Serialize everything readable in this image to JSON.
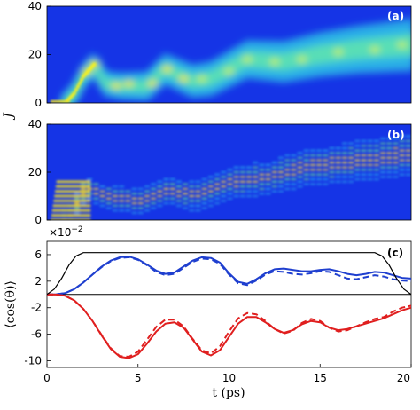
{
  "chart_data": [
    {
      "type": "heatmap",
      "panel_label": "(a)",
      "ylabel": "J",
      "ylim": [
        0,
        40
      ],
      "y_ticks": [
        "0",
        "20",
        "40"
      ],
      "xlim": [
        0,
        20
      ],
      "colormap": "jet",
      "description_ridge": [
        {
          "t": 1.0,
          "J": 0
        },
        {
          "t": 1.5,
          "J": 4
        },
        {
          "t": 2.0,
          "J": 11
        },
        {
          "t": 2.6,
          "J": 16
        },
        {
          "t": 3.2,
          "J": 8
        },
        {
          "t": 4.0,
          "J": 7
        },
        {
          "t": 5.5,
          "J": 7
        },
        {
          "t": 6.5,
          "J": 14
        },
        {
          "t": 8.0,
          "J": 9
        },
        {
          "t": 9.0,
          "J": 10
        },
        {
          "t": 11.0,
          "J": 18
        },
        {
          "t": 13.0,
          "J": 17
        },
        {
          "t": 15.0,
          "J": 20
        },
        {
          "t": 17.0,
          "J": 22
        },
        {
          "t": 20.0,
          "J": 24
        }
      ]
    },
    {
      "type": "heatmap",
      "panel_label": "(b)",
      "ylim": [
        0,
        40
      ],
      "y_ticks": [
        "0",
        "20",
        "40"
      ],
      "xlim": [
        0,
        20
      ],
      "colormap": "jet",
      "description_ridge": [
        {
          "t": 1.0,
          "J": 0
        },
        {
          "t": 2.0,
          "J": 14
        },
        {
          "t": 3.0,
          "J": 10
        },
        {
          "t": 5.0,
          "J": 8
        },
        {
          "t": 6.5,
          "J": 13
        },
        {
          "t": 8.0,
          "J": 10
        },
        {
          "t": 10.0,
          "J": 16
        },
        {
          "t": 12.0,
          "J": 18
        },
        {
          "t": 14.0,
          "J": 22
        },
        {
          "t": 16.0,
          "J": 24
        },
        {
          "t": 18.0,
          "J": 26
        },
        {
          "t": 20.0,
          "J": 28
        }
      ]
    },
    {
      "type": "line",
      "panel_label": "(c)",
      "ylabel": "⟨cos(θ)⟩",
      "xlabel": "t (ps)",
      "y_scale_label": "×10",
      "y_scale_exponent": "−2",
      "ylim": [
        -11,
        8
      ],
      "xlim": [
        0,
        20
      ],
      "x_ticks": [
        "0",
        "5",
        "10",
        "15",
        "20"
      ],
      "y_ticks": [
        "6",
        "2",
        "-2",
        "-6",
        "-10"
      ],
      "y_tick_values": [
        6,
        2,
        -2,
        -6,
        -10
      ],
      "series": [
        {
          "color": "#1f3fcf",
          "style": "solid",
          "x": [
            0,
            0.5,
            1,
            1.5,
            2,
            2.5,
            3,
            3.5,
            4,
            4.5,
            5,
            5.5,
            6,
            6.5,
            7,
            7.5,
            8,
            8.5,
            9,
            9.5,
            10,
            10.5,
            11,
            11.5,
            12,
            12.5,
            13,
            13.5,
            14,
            14.5,
            15,
            15.5,
            16,
            16.5,
            17,
            17.5,
            18,
            18.5,
            19,
            19.5,
            20
          ],
          "y": [
            0,
            0.02,
            0.2,
            0.8,
            1.8,
            3.0,
            4.2,
            5.1,
            5.6,
            5.7,
            5.3,
            4.5,
            3.6,
            3.1,
            3.3,
            4.2,
            5.1,
            5.6,
            5.5,
            4.8,
            3.2,
            1.9,
            1.6,
            2.3,
            3.2,
            3.8,
            3.9,
            3.7,
            3.5,
            3.5,
            3.7,
            3.8,
            3.5,
            3.1,
            2.9,
            3.1,
            3.4,
            3.3,
            2.9,
            2.5,
            2.4
          ]
        },
        {
          "color": "#1f3fcf",
          "style": "dashed",
          "x": [
            0,
            0.5,
            1,
            1.5,
            2,
            2.5,
            3,
            3.5,
            4,
            4.5,
            5,
            5.5,
            6,
            6.5,
            7,
            7.5,
            8,
            8.5,
            9,
            9.5,
            10,
            10.5,
            11,
            11.5,
            12,
            12.5,
            13,
            13.5,
            14,
            14.5,
            15,
            15.5,
            16,
            16.5,
            17,
            17.5,
            18,
            18.5,
            19,
            19.5,
            20
          ],
          "y": [
            0,
            0.02,
            0.2,
            0.8,
            1.8,
            3.0,
            4.1,
            5.0,
            5.5,
            5.6,
            5.2,
            4.4,
            3.4,
            2.9,
            3.1,
            4.0,
            4.9,
            5.4,
            5.3,
            4.6,
            3.0,
            1.7,
            1.4,
            2.1,
            3.0,
            3.5,
            3.4,
            3.1,
            3.0,
            3.2,
            3.5,
            3.4,
            2.9,
            2.4,
            2.3,
            2.6,
            2.9,
            2.7,
            2.3,
            2.1,
            2.0
          ]
        },
        {
          "color": "#e01f1f",
          "style": "solid",
          "x": [
            0,
            0.5,
            1,
            1.5,
            2,
            2.5,
            3,
            3.5,
            4,
            4.5,
            5,
            5.5,
            6,
            6.5,
            7,
            7.5,
            8,
            8.5,
            9,
            9.5,
            10,
            10.5,
            11,
            11.5,
            12,
            12.5,
            13,
            13.5,
            14,
            14.5,
            15,
            15.5,
            16,
            16.5,
            17,
            17.5,
            18,
            18.5,
            19,
            19.5,
            20
          ],
          "y": [
            0,
            -0.02,
            -0.2,
            -0.9,
            -2.2,
            -4.0,
            -6.2,
            -8.2,
            -9.4,
            -9.6,
            -9.0,
            -7.4,
            -5.6,
            -4.4,
            -4.2,
            -5.0,
            -6.8,
            -8.6,
            -9.2,
            -8.4,
            -6.4,
            -4.4,
            -3.4,
            -3.4,
            -4.2,
            -5.2,
            -5.8,
            -5.4,
            -4.5,
            -4.0,
            -4.2,
            -5.0,
            -5.4,
            -5.2,
            -4.8,
            -4.4,
            -4.0,
            -3.6,
            -3.0,
            -2.4,
            -2.0
          ]
        },
        {
          "color": "#e01f1f",
          "style": "dashed",
          "x": [
            0,
            0.5,
            1,
            1.5,
            2,
            2.5,
            3,
            3.5,
            4,
            4.5,
            5,
            5.5,
            6,
            6.5,
            7,
            7.5,
            8,
            8.5,
            9,
            9.5,
            10,
            10.5,
            11,
            11.5,
            12,
            12.5,
            13,
            13.5,
            14,
            14.5,
            15,
            15.5,
            16,
            16.5,
            17,
            17.5,
            18,
            18.5,
            19,
            19.5,
            20
          ],
          "y": [
            0,
            -0.02,
            -0.2,
            -0.9,
            -2.2,
            -4.0,
            -6.1,
            -8.1,
            -9.3,
            -9.4,
            -8.6,
            -6.8,
            -4.9,
            -3.8,
            -3.8,
            -4.8,
            -6.7,
            -8.4,
            -8.9,
            -7.8,
            -5.6,
            -3.6,
            -2.8,
            -3.0,
            -4.0,
            -5.2,
            -5.9,
            -5.5,
            -4.3,
            -3.7,
            -4.0,
            -5.0,
            -5.6,
            -5.4,
            -4.8,
            -4.2,
            -3.7,
            -3.4,
            -2.6,
            -2.0,
            -1.7
          ]
        },
        {
          "color": "#000000",
          "style": "solid",
          "role": "pulse envelope",
          "x": [
            0,
            0.4,
            0.8,
            1.2,
            1.6,
            2,
            2.4,
            17.6,
            18,
            18.4,
            18.8,
            19.2,
            19.6,
            20
          ],
          "y": [
            0,
            0.8,
            2.4,
            4.4,
            5.8,
            6.3,
            6.3,
            6.3,
            6.3,
            5.8,
            4.4,
            2.4,
            0.8,
            0
          ]
        }
      ]
    }
  ]
}
